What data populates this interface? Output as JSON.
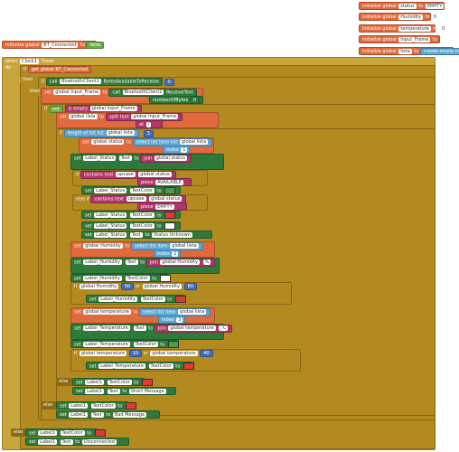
{
  "globals": [
    {
      "name": "status",
      "value": "EMPTY",
      "kind": "text"
    },
    {
      "name": "Humidity",
      "value": "0",
      "kind": "number"
    },
    {
      "name": "temperature",
      "value": "0",
      "kind": "number"
    },
    {
      "name": "Input_Frame",
      "value": "",
      "kind": "text"
    },
    {
      "name": "lista",
      "value": "create empty list",
      "kind": "list"
    },
    {
      "name": "BT_Connected",
      "value": "false",
      "kind": "logic"
    }
  ],
  "labels": {
    "initialize_global": "initialize global",
    "to": "to",
    "when": "when",
    "do": "do",
    "then": "then",
    "else": "else",
    "else_if": "else if",
    "if": "if",
    "set": "set",
    "get": "get",
    "call": "call",
    "not": "not",
    "is_empty": "is empty",
    "split": "split",
    "text": "text",
    "at": "at",
    "select_list_item": "select list item",
    "list": "list",
    "index": "index",
    "length_of_list": "length of list",
    "join": "join",
    "contains": "contains",
    "upcase": "upcase",
    "piece": "piece",
    "or": "or"
  },
  "event": {
    "component": "Clock1",
    "event": "Timer"
  },
  "ids": {
    "bt_connected": "global BT_Connected",
    "bt_client": "BluetoothClient1",
    "bytes_avail": "BytesAvailableToReceive",
    "receive_text": "ReceiveText",
    "number_of_bytes": "numberOfBytes",
    "global_input": "global Input_Frame",
    "global_lista": "global lista",
    "global_status": "global status",
    "global_humidity": "global Humidity",
    "global_temperature": "global temperature",
    "label_status": "Label_Status",
    "label_humidity": "Label_Humidity",
    "label_temperature": "Label_Temperature",
    "label1": "Label1",
    "prop_text": "Text",
    "prop_textcolor": "TextColor"
  },
  "values": {
    "zero": "0",
    "sep": "/",
    "comma": ",",
    "three": "3",
    "one": "1",
    "two": "2",
    "colon_pct": "%",
    "deg": "°C",
    "avail": "AVAILABLE",
    "empty": "EMPTY",
    "status_unknown": "Status Unknown",
    "h_low": "50",
    "h_high": "80",
    "t_low": "10",
    "t_high": "40",
    "short_message": "Short Message",
    "bad_message": "Bad Message",
    "disconnected": "Disconnected"
  },
  "colors": {
    "red": "#e53935",
    "green": "#43a047",
    "white": "#ffffff"
  }
}
